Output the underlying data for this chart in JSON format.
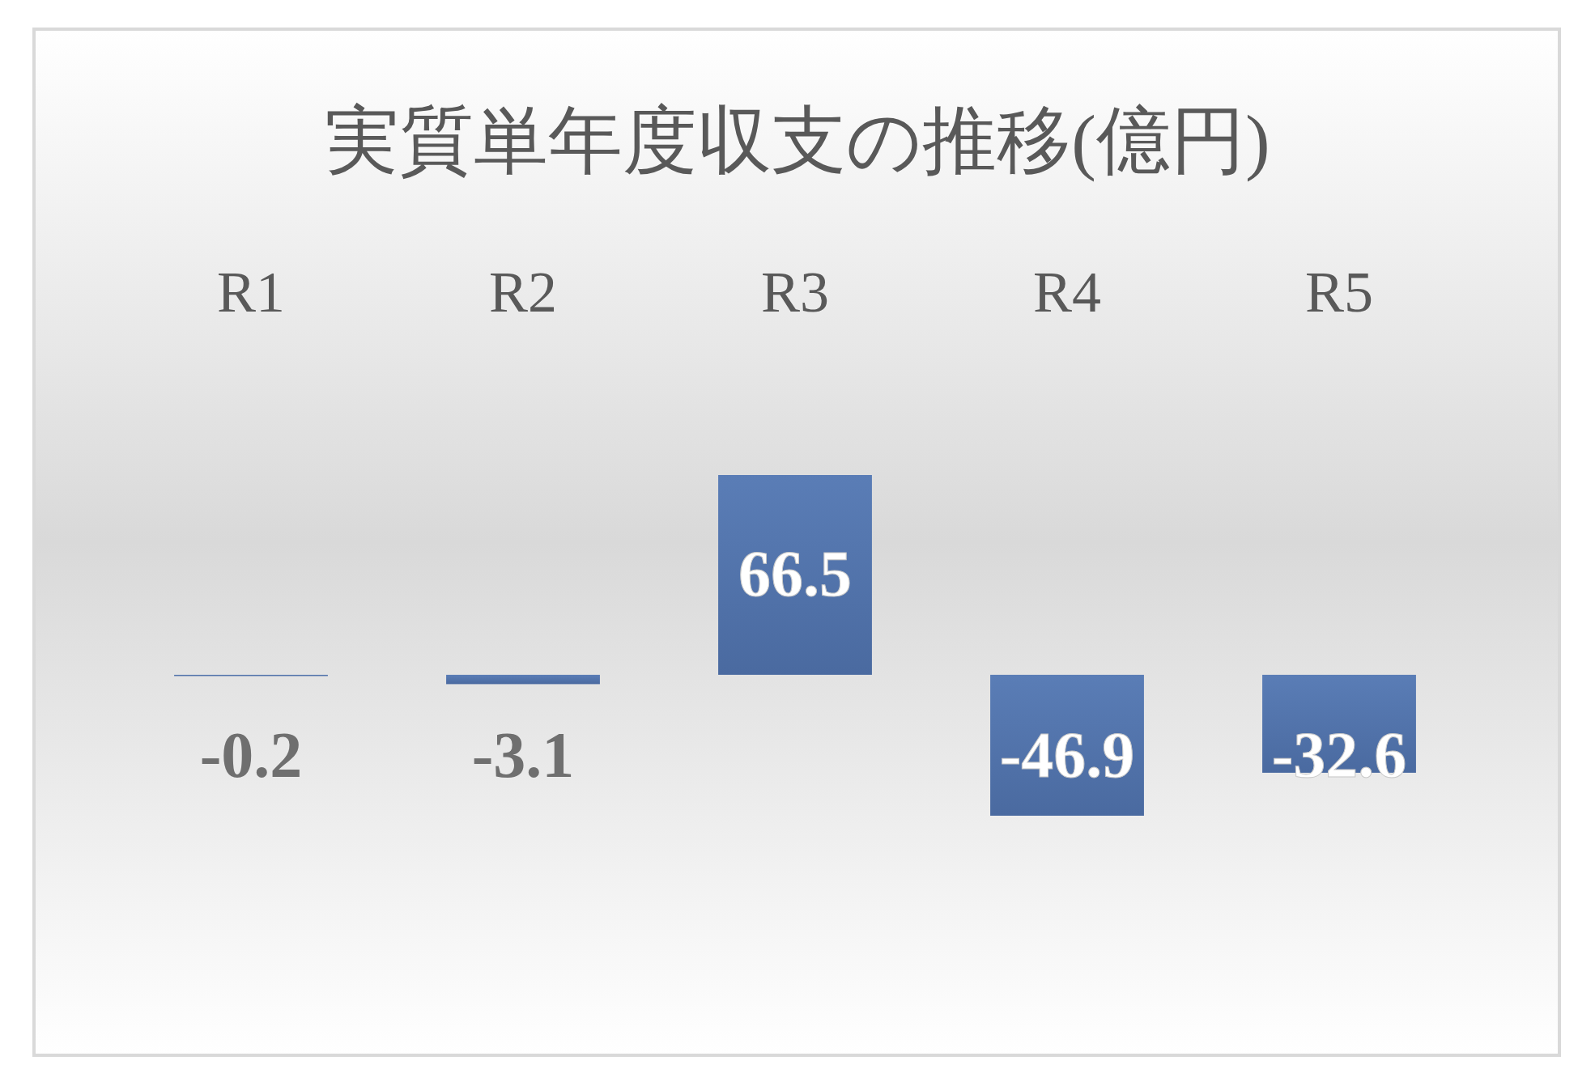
{
  "chart_data": {
    "type": "bar",
    "title": "実質単年度収支の推移(億円)",
    "categories": [
      "R1",
      "R2",
      "R3",
      "R4",
      "R5"
    ],
    "values": [
      -0.2,
      -3.1,
      66.5,
      -46.9,
      -32.6
    ],
    "color": "#5a7db6",
    "data_labels": true
  }
}
